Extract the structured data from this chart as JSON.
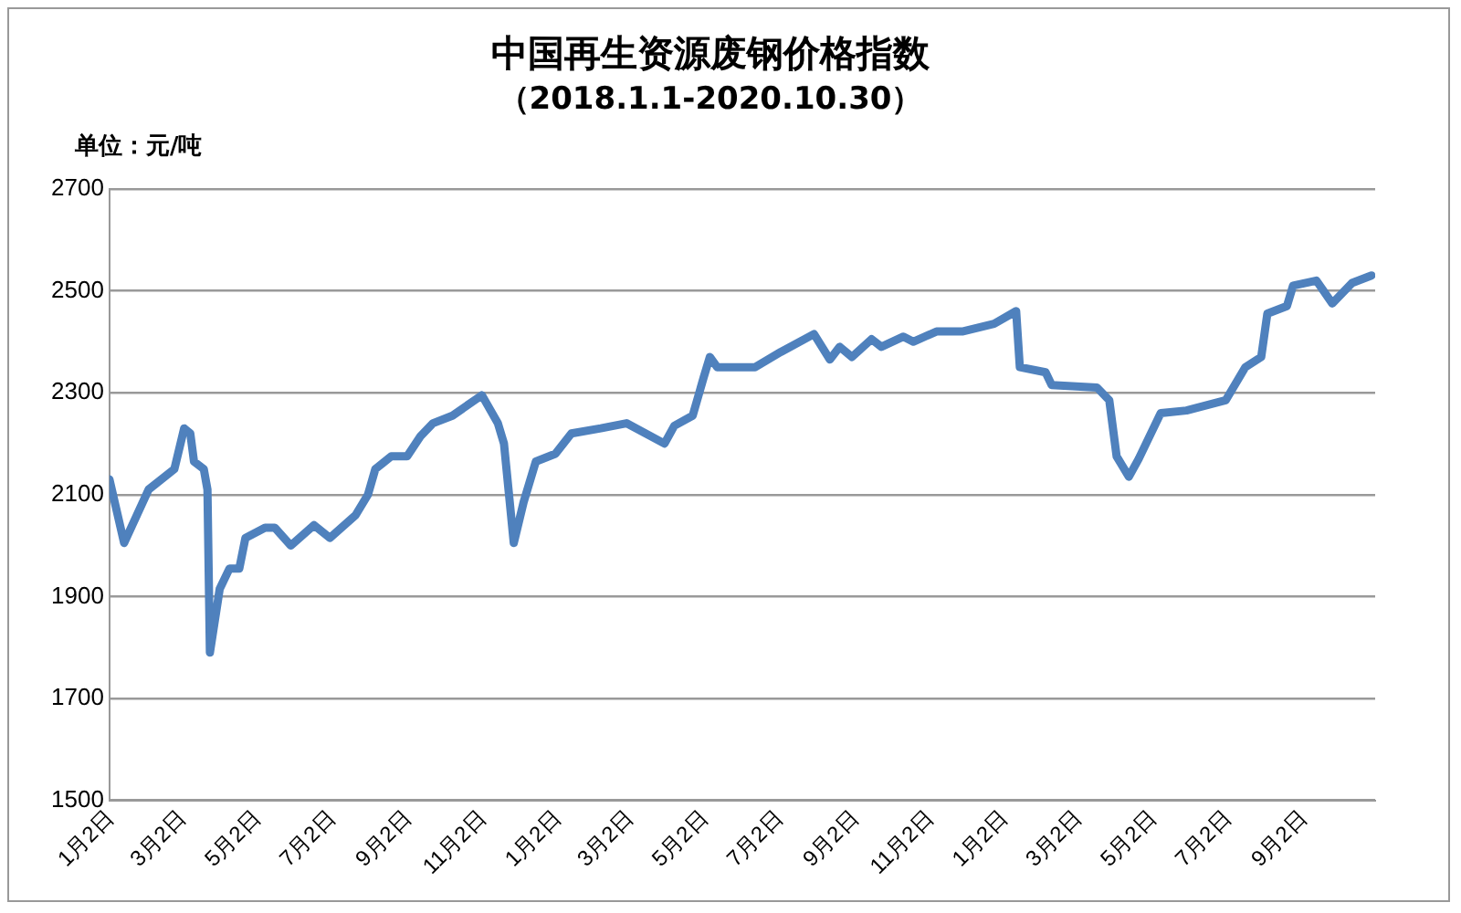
{
  "chart_data": {
    "type": "line",
    "title": "中国再生资源废钢价格指数",
    "subtitle": "（2018.1.1-2020.10.30）",
    "ylabel": "单位：元/吨",
    "x": [
      "2018-01-01",
      "2018-01-13",
      "2018-02-02",
      "2018-02-23",
      "2018-03-03",
      "2018-03-08",
      "2018-03-11",
      "2018-03-19",
      "2018-03-22",
      "2018-03-24",
      "2018-04-01",
      "2018-04-09",
      "2018-04-17",
      "2018-04-22",
      "2018-05-08",
      "2018-05-16",
      "2018-05-29",
      "2018-06-17",
      "2018-06-30",
      "2018-07-21",
      "2018-07-31",
      "2018-08-06",
      "2018-08-19",
      "2018-09-01",
      "2018-09-12",
      "2018-09-22",
      "2018-10-08",
      "2018-11-01",
      "2018-11-14",
      "2018-11-19",
      "2018-11-27",
      "2018-12-05",
      "2018-12-15",
      "2018-12-31",
      "2019-01-13",
      "2019-02-06",
      "2019-02-27",
      "2019-03-30",
      "2019-04-07",
      "2019-04-22",
      "2019-05-01",
      "2019-05-06",
      "2019-05-12",
      "2019-06-12",
      "2019-07-03",
      "2019-07-30",
      "2019-08-12",
      "2019-08-20",
      "2019-08-30",
      "2019-09-15",
      "2019-09-23",
      "2019-10-11",
      "2019-10-19",
      "2019-11-07",
      "2019-11-28",
      "2019-12-24",
      "2020-01-11",
      "2020-01-14",
      "2020-02-04",
      "2020-02-09",
      "2020-03-17",
      "2020-03-27",
      "2020-04-02",
      "2020-04-12",
      "2020-04-20",
      "2020-05-08",
      "2020-05-29",
      "2020-06-30",
      "2020-07-16",
      "2020-07-29",
      "2020-08-03",
      "2020-08-19",
      "2020-08-24",
      "2020-09-12",
      "2020-09-25",
      "2020-10-11",
      "2020-10-27"
    ],
    "series": [
      {
        "color": "#4f81bd",
        "values": [
          2130,
          2005,
          2110,
          2150,
          2230,
          2220,
          2165,
          2150,
          2110,
          1790,
          1915,
          1955,
          1955,
          2015,
          2035,
          2035,
          2000,
          2040,
          2015,
          2060,
          2100,
          2150,
          2175,
          2175,
          2215,
          2240,
          2255,
          2295,
          2240,
          2200,
          2005,
          2085,
          2165,
          2180,
          2220,
          2230,
          2240,
          2200,
          2235,
          2255,
          2330,
          2370,
          2350,
          2350,
          2380,
          2415,
          2365,
          2390,
          2370,
          2405,
          2390,
          2410,
          2400,
          2420,
          2420,
          2435,
          2460,
          2350,
          2340,
          2315,
          2310,
          2285,
          2175,
          2135,
          2170,
          2260,
          2265,
          2285,
          2350,
          2370,
          2455,
          2470,
          2510,
          2520,
          2475,
          2515,
          2530
        ]
      }
    ],
    "xlim": [
      "2018-01-01",
      "2020-10-30"
    ],
    "xticks": [
      {
        "value": "2018-01-02",
        "label": "1月2日"
      },
      {
        "value": "2018-03-02",
        "label": "3月2日"
      },
      {
        "value": "2018-05-02",
        "label": "5月2日"
      },
      {
        "value": "2018-07-02",
        "label": "7月2日"
      },
      {
        "value": "2018-09-02",
        "label": "9月2日"
      },
      {
        "value": "2018-11-02",
        "label": "11月2日"
      },
      {
        "value": "2019-01-02",
        "label": "1月2日"
      },
      {
        "value": "2019-03-02",
        "label": "3月2日"
      },
      {
        "value": "2019-05-02",
        "label": "5月2日"
      },
      {
        "value": "2019-07-02",
        "label": "7月2日"
      },
      {
        "value": "2019-09-02",
        "label": "9月2日"
      },
      {
        "value": "2019-11-02",
        "label": "11月2日"
      },
      {
        "value": "2020-01-02",
        "label": "1月2日"
      },
      {
        "value": "2020-03-02",
        "label": "3月2日"
      },
      {
        "value": "2020-05-02",
        "label": "5月2日"
      },
      {
        "value": "2020-07-02",
        "label": "7月2日"
      },
      {
        "value": "2020-09-02",
        "label": "9月2日"
      }
    ],
    "ylim": [
      1500,
      2700
    ],
    "yticks": [
      1500,
      1700,
      1900,
      2100,
      2300,
      2500,
      2700
    ],
    "grid": "y",
    "legend": false,
    "marker": "none",
    "line_style": "solid"
  }
}
